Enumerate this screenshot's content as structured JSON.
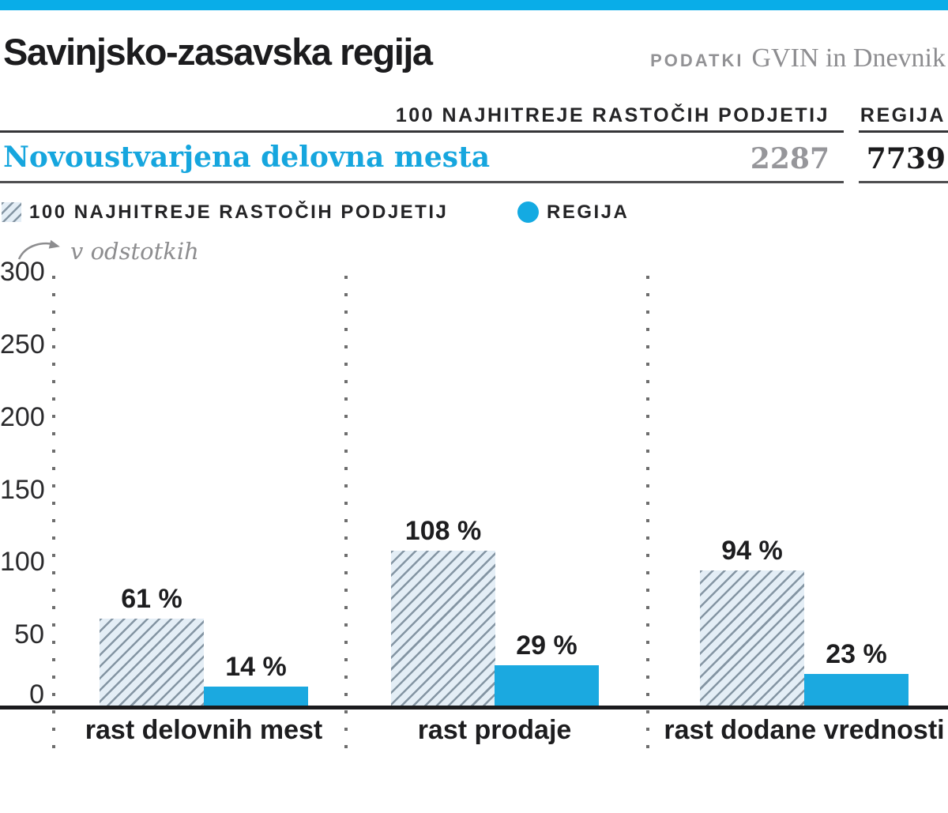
{
  "banner_color": "#09ade8",
  "header": {
    "title": "Savinjsko-zasavska regija",
    "source_prefix": "PODATKI",
    "source_name": "GVIN in Dnevnik"
  },
  "table": {
    "col1_header": "100 NAJHITREJE RASTOČIH PODJETIJ",
    "col2_header": "REGIJA",
    "row_label": "Novoustvarjena delovna mesta",
    "col1_value": "2287",
    "col2_value": "7739"
  },
  "legend": {
    "series1": "100 NAJHITREJE RASTOČIH PODJETIJ",
    "series2": "REGIJA"
  },
  "axis_note": "v odstotkih",
  "colors": {
    "accent_cyan": "#14aae2",
    "hatch_line": "#8495a3",
    "hatch_bg": "#e4eef6",
    "gray_text": "#8d8d90",
    "dark_text": "#1d1d1f"
  },
  "chart_data": {
    "type": "bar",
    "title": "Savinjsko-zasavska regija",
    "ylabel": "v odstotkih",
    "unit": "%",
    "categories": [
      "rast delovnih mest",
      "rast prodaje",
      "rast dodane vrednosti"
    ],
    "series": [
      {
        "name": "100 NAJHITREJE RASTOČIH PODJETIJ",
        "style": "hatched",
        "values": [
          61,
          108,
          94
        ],
        "labels": [
          "61 %",
          "108 %",
          "94 %"
        ]
      },
      {
        "name": "REGIJA",
        "style": "solid",
        "values": [
          14,
          29,
          23
        ],
        "labels": [
          "14 %",
          "29 %",
          "23 %"
        ]
      }
    ],
    "yticks": [
      0,
      50,
      100,
      150,
      200,
      250,
      300
    ],
    "ylim": [
      0,
      300
    ],
    "grid": "vertical-dotted-separators",
    "legend_position": "top-left"
  }
}
